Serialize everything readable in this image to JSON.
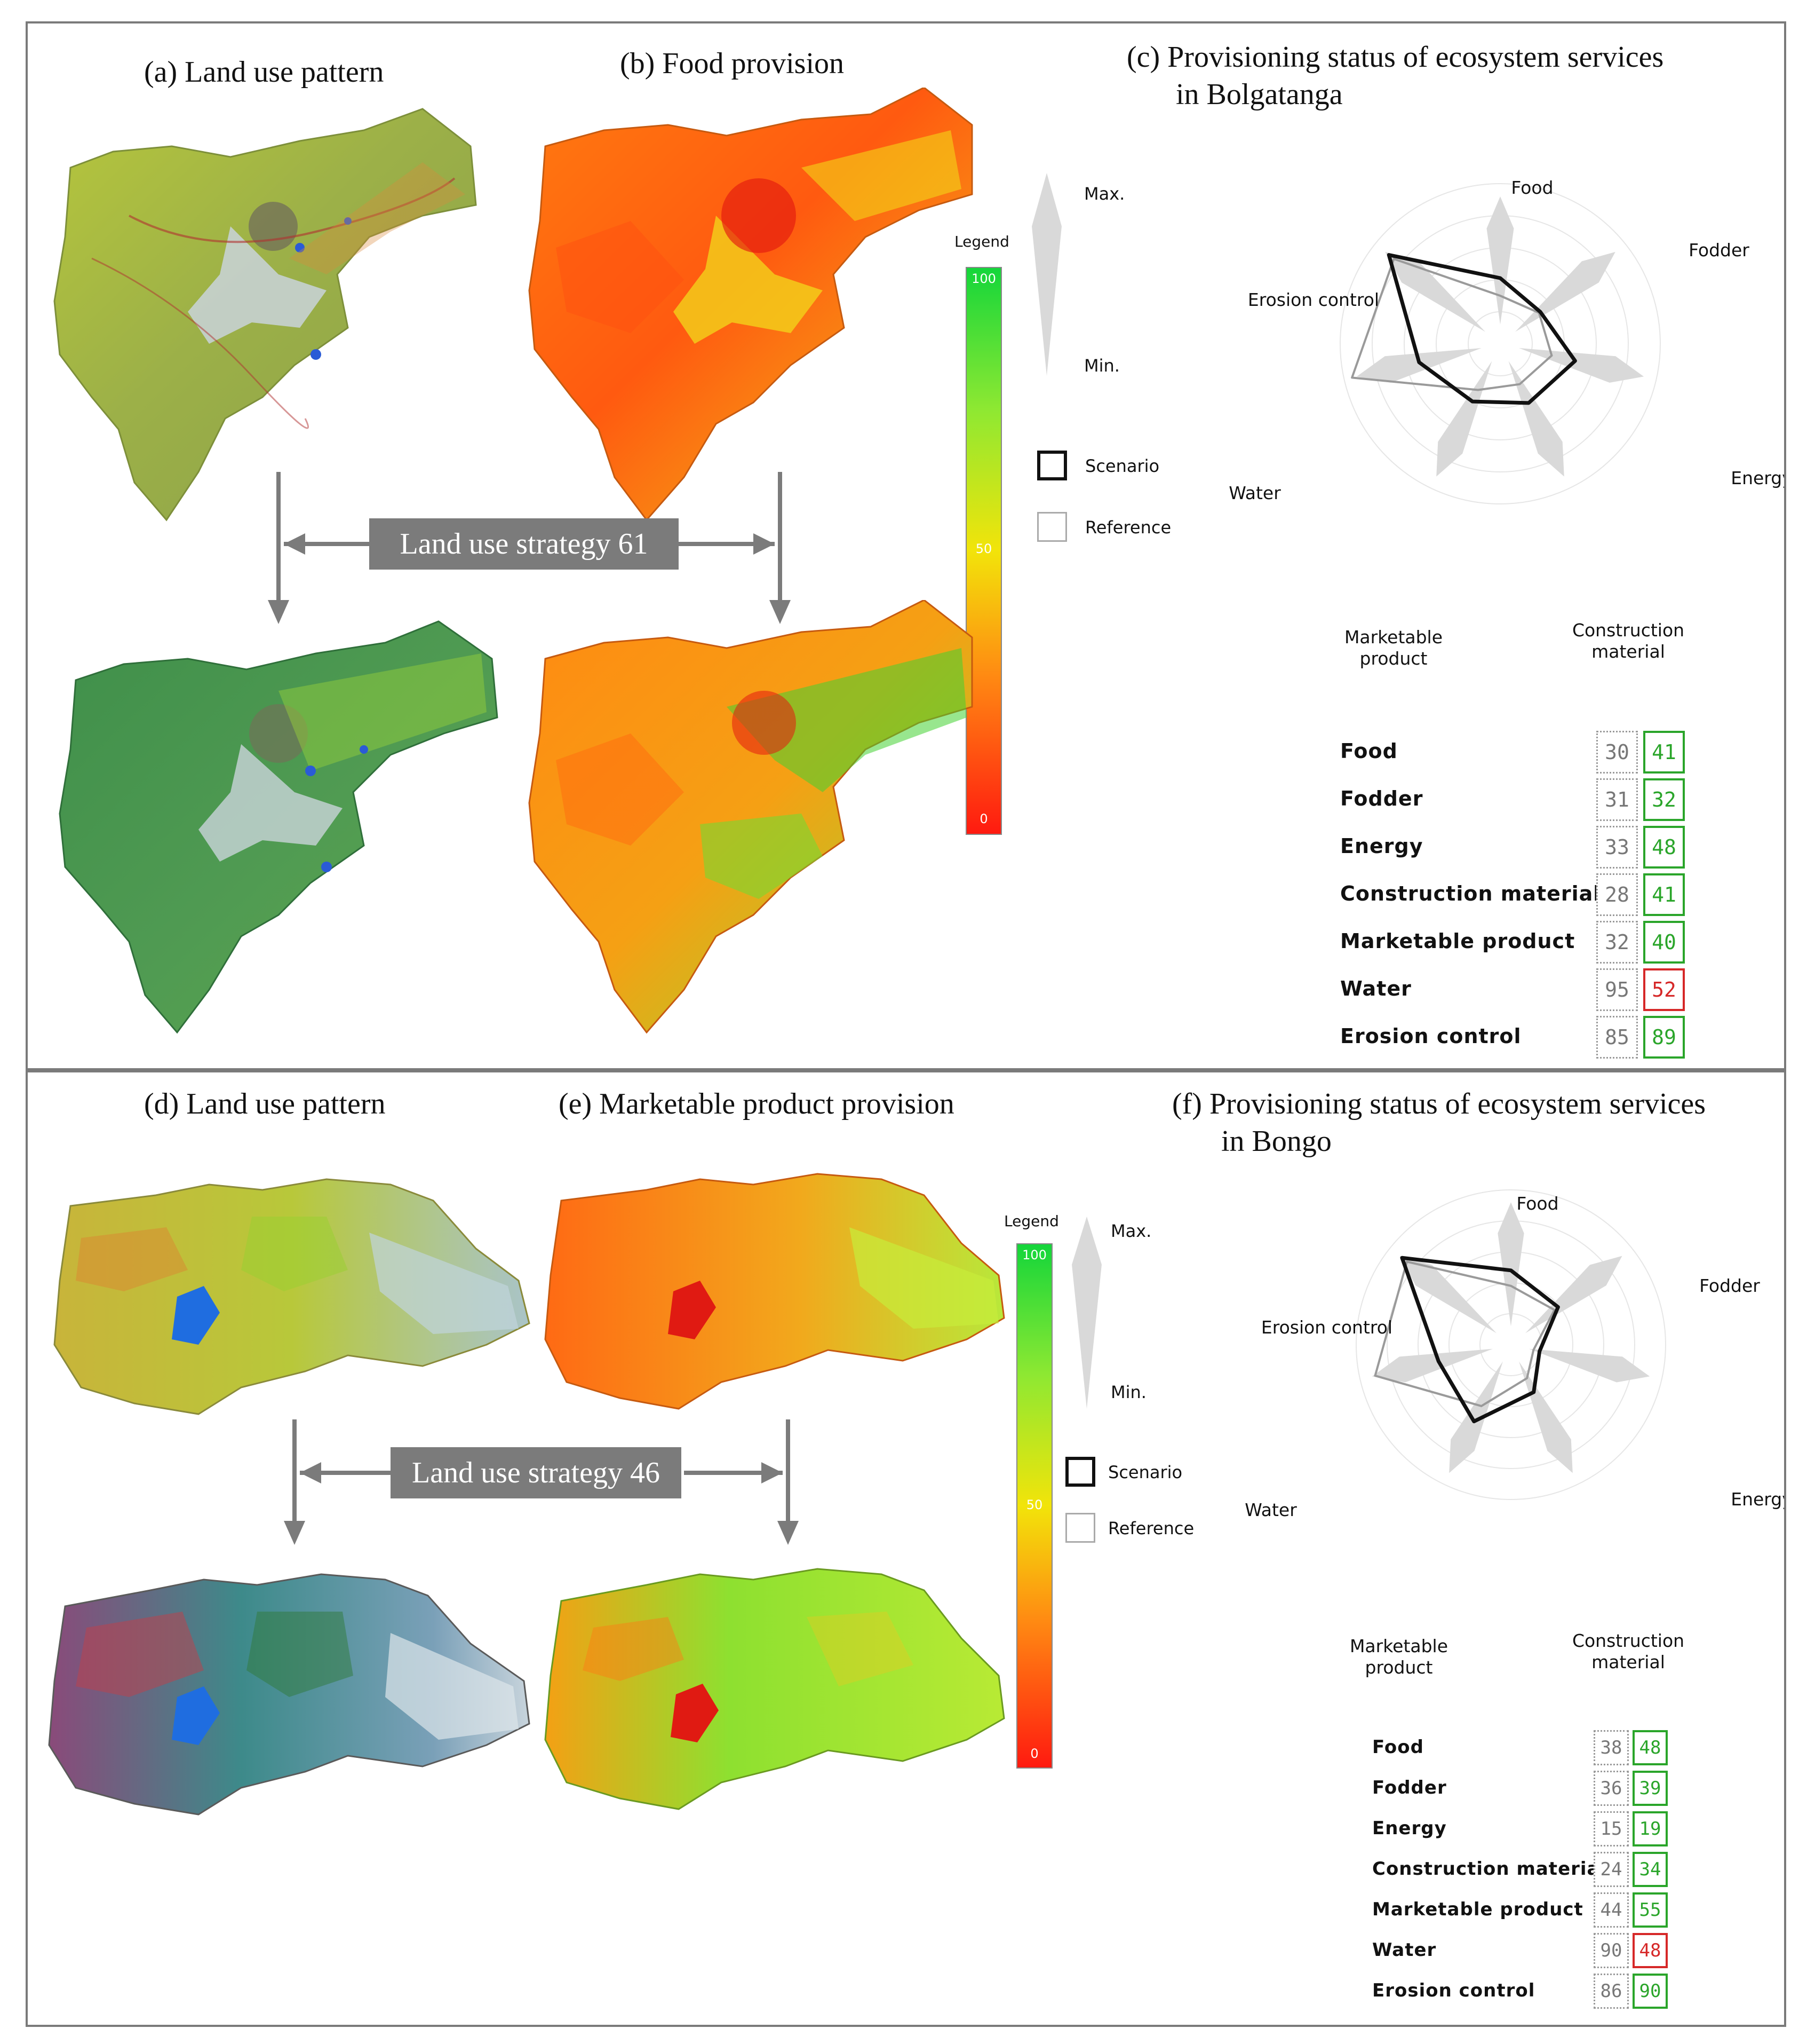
{
  "legend": {
    "title": "Legend",
    "tick_top": "100",
    "tick_mid": "50",
    "tick_bottom": "0",
    "max": "Max.",
    "min": "Min.",
    "scenario": "Scenario",
    "reference": "Reference"
  },
  "colors": {
    "good": "#2aa52a",
    "bad": "#d62828",
    "reference_box": "#9a9a9a",
    "scenario_line": "#111111",
    "reference_line": "#9a9a9a",
    "petal": "#d9d9d9"
  },
  "top": {
    "title_a": "(a) Land use pattern",
    "title_b": "(b) Food provision",
    "title_c_1": "(c) Provisioning status of ecosystem services",
    "title_c_2": "in Bolgatanga",
    "strategy": "Land use strategy 61",
    "axis_labels": [
      "Food",
      "Fodder",
      "Energy",
      "Construction\nmaterial",
      "Marketable\nproduct",
      "Water",
      "Erosion control"
    ]
  },
  "bottom": {
    "title_d": "(d) Land use pattern",
    "title_e": "(e) Marketable product provision",
    "title_f_1": "(f) Provisioning status of ecosystem services",
    "title_f_2": "in Bongo",
    "strategy": "Land use strategy 46",
    "axis_labels": [
      "Food",
      "Fodder",
      "Energy",
      "Construction\nmaterial",
      "Marketable\nproduct",
      "Water",
      "Erosion control"
    ]
  },
  "chart_data": [
    {
      "type": "radar",
      "title": "(c) Provisioning status of ecosystem services in Bolgatanga",
      "categories": [
        "Food",
        "Fodder",
        "Energy",
        "Construction material",
        "Marketable product",
        "Water",
        "Erosion control"
      ],
      "series": [
        {
          "name": "Reference",
          "values": [
            30,
            31,
            33,
            28,
            32,
            95,
            85
          ]
        },
        {
          "name": "Scenario",
          "values": [
            41,
            32,
            48,
            41,
            40,
            52,
            89
          ]
        }
      ],
      "ylim": [
        0,
        100
      ]
    },
    {
      "type": "radar",
      "title": "(f) Provisioning status of ecosystem services in Bongo",
      "categories": [
        "Food",
        "Fodder",
        "Energy",
        "Construction material",
        "Marketable product",
        "Water",
        "Erosion control"
      ],
      "series": [
        {
          "name": "Reference",
          "values": [
            38,
            36,
            15,
            24,
            44,
            90,
            86
          ]
        },
        {
          "name": "Scenario",
          "values": [
            48,
            39,
            19,
            34,
            55,
            48,
            90
          ]
        }
      ],
      "ylim": [
        0,
        100
      ]
    }
  ]
}
